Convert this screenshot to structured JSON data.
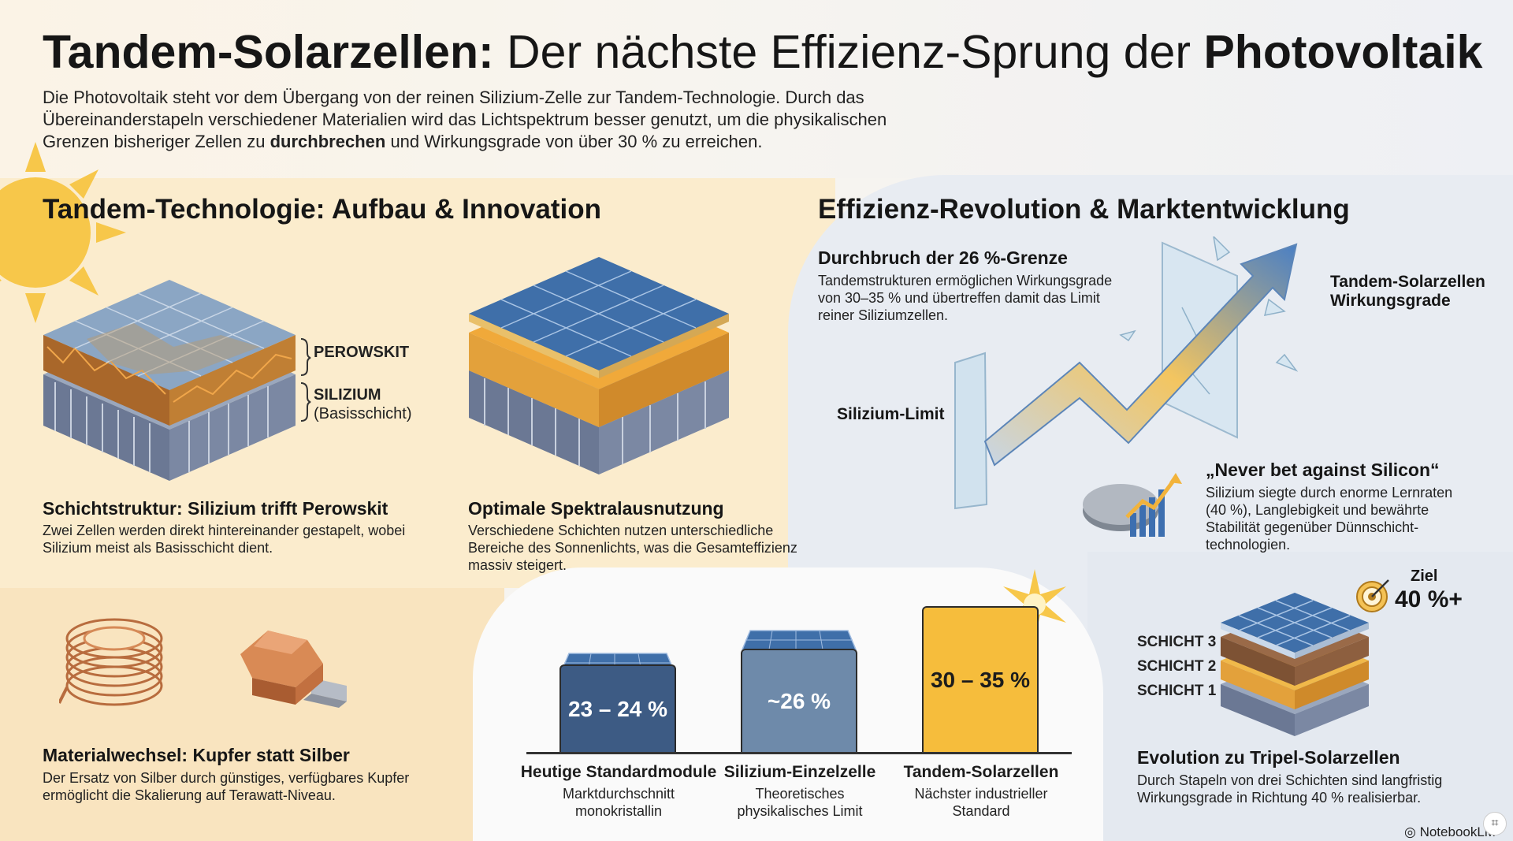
{
  "header": {
    "title_bold_1": "Tandem-Solarzellen:",
    "title_mid": "Der nächste Effizienz-Sprung der",
    "title_bold_2": "Photovoltaik",
    "intro_1": "Die Photovoltaik steht vor dem Übergang von der reinen Silizium-Zelle zur Tandem-Technologie. Durch das Übereinanderstapeln verschiedener Materialien wird das Lichtspektrum besser genutzt, um die physikalischen Grenzen bisheriger Zellen zu",
    "intro_bold": "durchbrechen",
    "intro_2": "und Wirkungsgrade von über 30 % zu erreichen."
  },
  "left_section": {
    "heading": "Tandem-Technologie: Aufbau & Innovation",
    "stack_labels": {
      "top": "PEROWSKIT",
      "bottom": "SILIZIUM",
      "bottom_sub": "(Basisschicht)"
    },
    "card1": {
      "title": "Schichtstruktur: Silizium trifft Perowskit",
      "text": "Zwei Zellen werden direkt hintereinander gestapelt, wobei Silizium meist als Basisschicht dient."
    },
    "card2": {
      "title": "Optimale Spektralausnutzung",
      "text": "Verschiedene Schichten nutzen unterschiedliche Bereiche des Sonnenlichts, was die Gesamteffizienz massiv steigert."
    },
    "card3": {
      "title": "Materialwechsel: Kupfer statt Silber",
      "text": "Der Ersatz von Silber durch günstiges, verfügbares Kupfer ermöglicht die Skalierung auf Terawatt-Niveau."
    }
  },
  "chart_data": {
    "type": "bar",
    "categories": [
      "Heutige Standardmodule",
      "Silizium-Einzelzelle",
      "Tandem-Solarzellen"
    ],
    "value_labels": [
      "23 – 24 %",
      "~26 %",
      "30 – 35 %"
    ],
    "values": [
      23.5,
      26,
      32.5
    ],
    "subtitles": [
      "Marktdurchschnitt monokristallin",
      "Theoretisches physikalisches Limit",
      "Nächster industrieller Standard"
    ],
    "colors": [
      "#3d5b84",
      "#6e8aaa",
      "#f6bd3c"
    ]
  },
  "right_section": {
    "heading": "Effizienz-Revolution & Marktentwicklung",
    "breakthrough": {
      "title": "Durchbruch der 26 %-Grenze",
      "text": "Tandemstrukturen ermöglichen Wirkungsgrade von 30–35 % und übertreffen damit das Limit reiner Siliziumzellen."
    },
    "label_silicon_limit": "Silizium-Limit",
    "label_tandem_1": "Tandem-Solarzellen",
    "label_tandem_2": "Wirkungsgrade",
    "quote": {
      "title": "„Never bet against Silicon“",
      "text": "Silizium siegte durch enorme Lernraten (40 %), Langlebigkeit und bewährte Stabilität gegenüber Dünnschicht-technologien."
    },
    "goal": {
      "label": "Ziel",
      "value": "40 %+"
    },
    "layers": [
      "SCHICHT 3",
      "SCHICHT 2",
      "SCHICHT 1"
    ],
    "triple": {
      "title": "Evolution zu Tripel-Solarzellen",
      "text": "Durch Stapeln von drei Schichten sind langfristig Wirkungsgrade in Richtung 40 % realisierbar."
    }
  },
  "footer": {
    "brand": "NotebookLM"
  },
  "colors": {
    "perovskite": "#b4712d",
    "silicon": "#8a97ad",
    "gold": "#f6bd3c",
    "navy": "#3d5b84",
    "copper": "#c97a4b"
  }
}
